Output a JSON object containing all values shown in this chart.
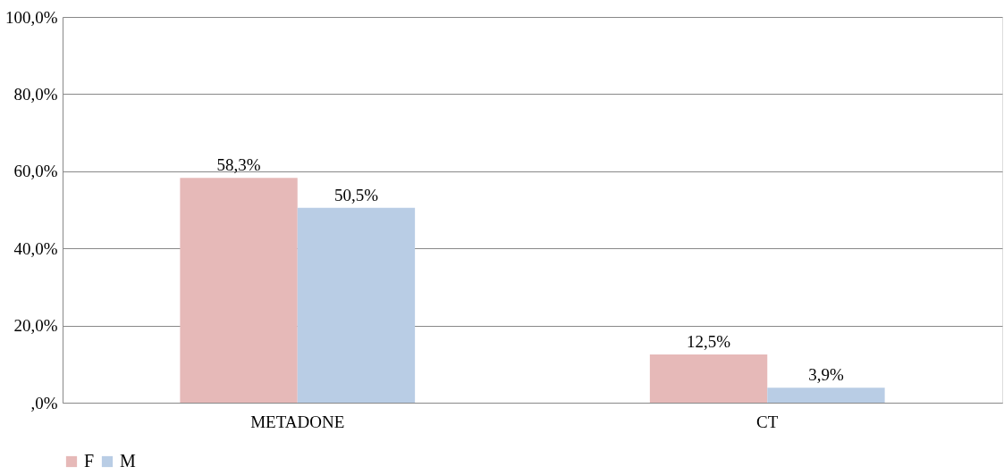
{
  "chart_data": {
    "type": "bar",
    "categories": [
      "METADONE",
      "CT"
    ],
    "series": [
      {
        "name": "F",
        "color": "#e6b9b8",
        "values": [
          58.3,
          12.5
        ],
        "value_labels": [
          "58,3%",
          "12,5%"
        ]
      },
      {
        "name": "M",
        "color": "#b9cde5",
        "values": [
          50.5,
          3.9
        ],
        "value_labels": [
          "50,5%",
          "3,9%"
        ]
      }
    ],
    "ylim": [
      0,
      100
    ],
    "yticks": [
      {
        "value": 0,
        "label": ",0%"
      },
      {
        "value": 20,
        "label": "20,0%"
      },
      {
        "value": 40,
        "label": "40,0%"
      },
      {
        "value": 60,
        "label": "60,0%"
      },
      {
        "value": 80,
        "label": "80,0%"
      },
      {
        "value": 100,
        "label": "100,0%"
      }
    ],
    "grid": "y",
    "legend": "bottom"
  }
}
